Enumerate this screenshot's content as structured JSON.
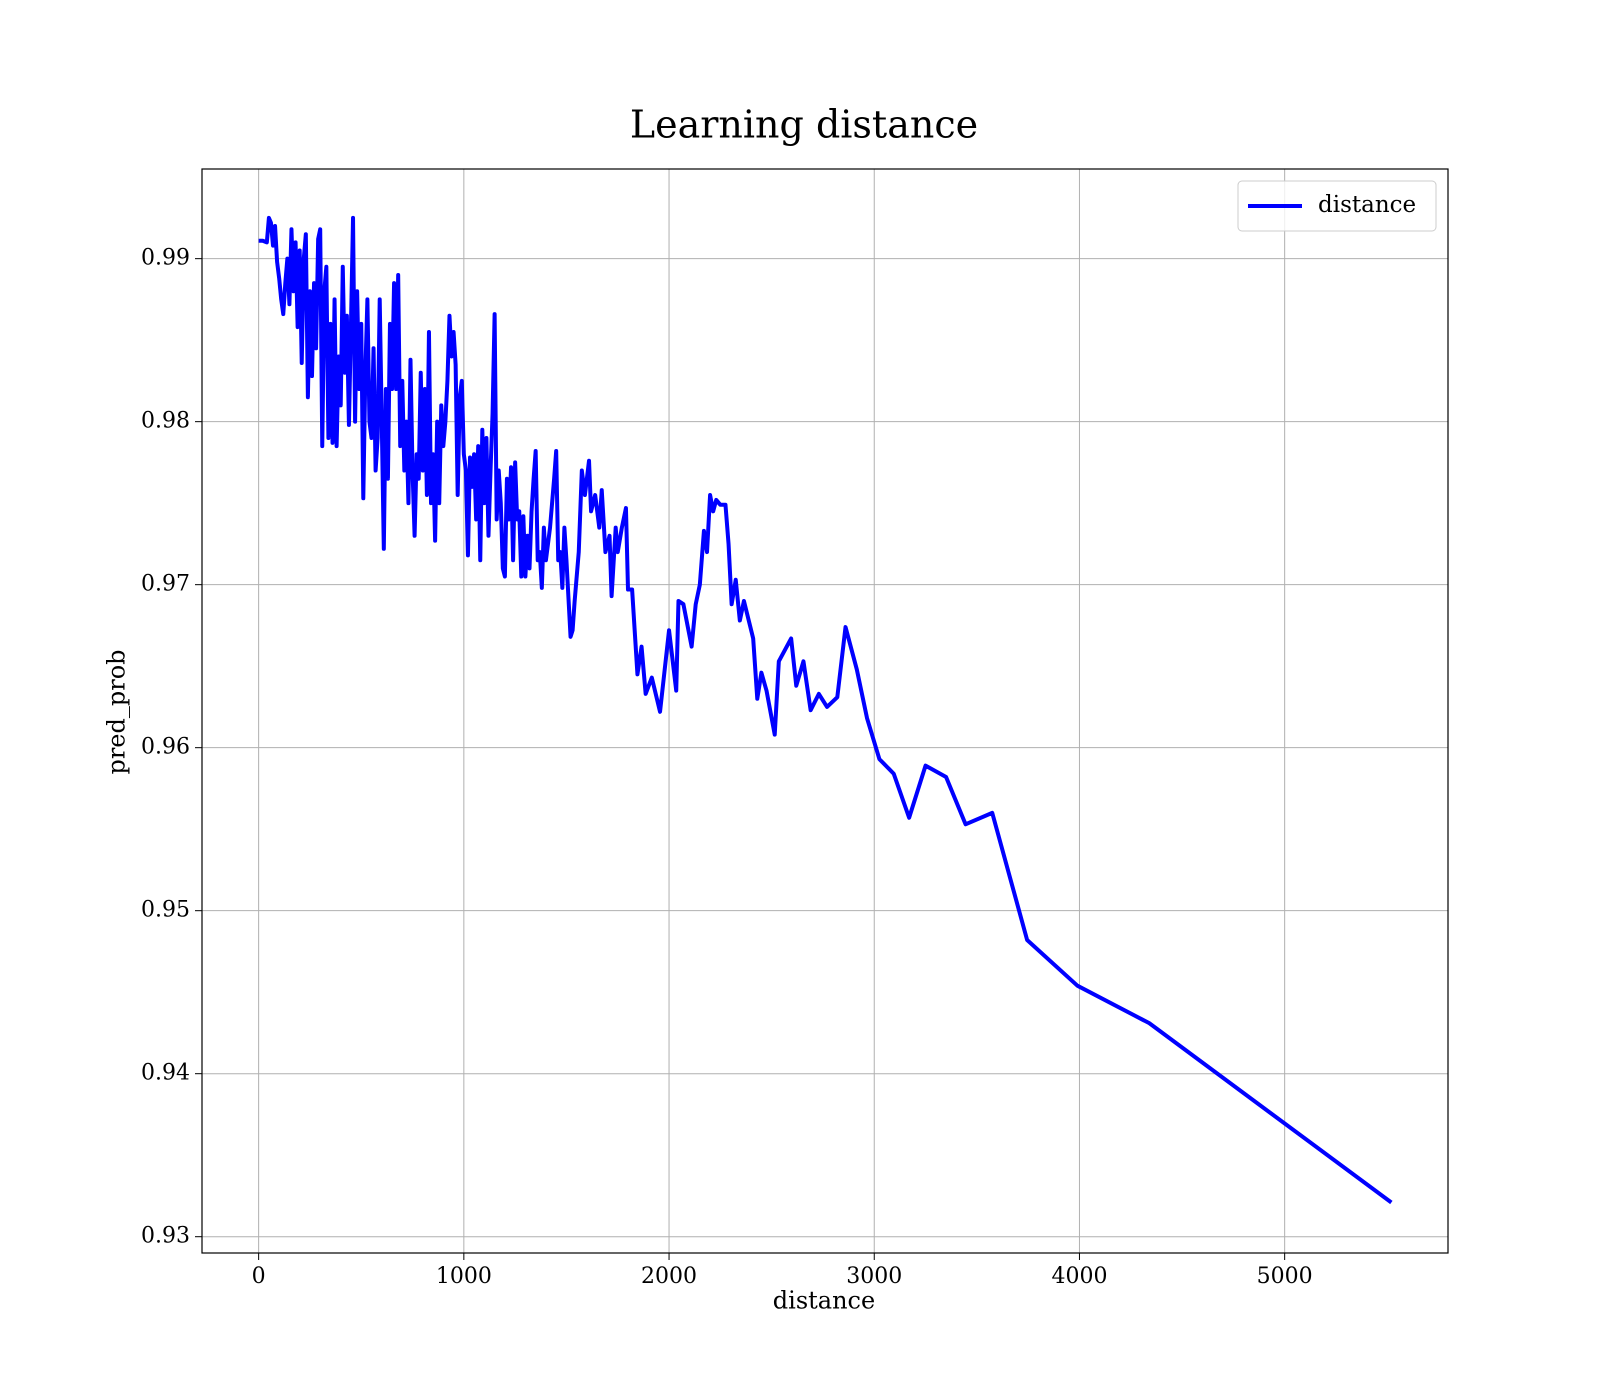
{
  "chart_data": {
    "type": "line",
    "title": "Learning distance",
    "x_label": "distance",
    "y_label": "pred_prob",
    "grid": true,
    "legend": "upper right",
    "xlim": [
      -276,
      5796
    ],
    "xticks": [
      0,
      1000,
      2000,
      3000,
      4000,
      5000
    ],
    "ylim": [
      0.929,
      0.9955
    ],
    "yticks": [
      0.93,
      0.94,
      0.95,
      0.96,
      0.97,
      0.98,
      0.99
    ],
    "x": [
      0,
      20,
      40,
      50,
      60,
      70,
      80,
      90,
      100,
      110,
      120,
      130,
      140,
      150,
      160,
      170,
      180,
      190,
      200,
      210,
      220,
      230,
      240,
      250,
      260,
      270,
      280,
      290,
      300,
      310,
      320,
      330,
      340,
      350,
      360,
      370,
      380,
      390,
      400,
      410,
      420,
      430,
      440,
      450,
      460,
      470,
      480,
      490,
      500,
      510,
      520,
      530,
      540,
      550,
      560,
      570,
      580,
      590,
      600,
      610,
      620,
      630,
      640,
      650,
      660,
      670,
      680,
      690,
      700,
      710,
      720,
      730,
      740,
      750,
      760,
      770,
      780,
      790,
      800,
      810,
      820,
      830,
      840,
      850,
      860,
      870,
      880,
      890,
      900,
      910,
      920,
      930,
      940,
      950,
      960,
      970,
      980,
      990,
      1000,
      1010,
      1020,
      1030,
      1040,
      1050,
      1060,
      1070,
      1080,
      1090,
      1100,
      1110,
      1120,
      1130,
      1140,
      1150,
      1160,
      1170,
      1180,
      1190,
      1200,
      1210,
      1220,
      1230,
      1240,
      1250,
      1260,
      1270,
      1280,
      1290,
      1300,
      1310,
      1320,
      1330,
      1340,
      1350,
      1360,
      1370,
      1380,
      1390,
      1400,
      1420,
      1440,
      1450,
      1460,
      1470,
      1480,
      1490,
      1500,
      1520,
      1530,
      1540,
      1560,
      1575,
      1590,
      1610,
      1620,
      1640,
      1660,
      1672,
      1690,
      1710,
      1720,
      1740,
      1750,
      1770,
      1790,
      1800,
      1820,
      1846,
      1866,
      1886,
      1916,
      1956,
      2000,
      2035,
      2046,
      2070,
      2110,
      2130,
      2150,
      2170,
      2185,
      2200,
      2215,
      2230,
      2250,
      2275,
      2290,
      2305,
      2325,
      2345,
      2365,
      2410,
      2430,
      2450,
      2475,
      2515,
      2535,
      2595,
      2620,
      2655,
      2690,
      2730,
      2770,
      2820,
      2860,
      2915,
      2965,
      3025,
      3095,
      3170,
      3250,
      3350,
      3445,
      3575,
      3745,
      3990,
      4340,
      5520
    ],
    "series": [
      {
        "name": "distance",
        "color": "#0000ff",
        "values": [
          0.9911,
          0.9911,
          0.991,
          0.9925,
          0.9922,
          0.9908,
          0.992,
          0.9898,
          0.9888,
          0.9875,
          0.9866,
          0.9885,
          0.99,
          0.9872,
          0.9918,
          0.988,
          0.991,
          0.9858,
          0.9905,
          0.9836,
          0.99,
          0.9915,
          0.9815,
          0.988,
          0.9828,
          0.9885,
          0.9845,
          0.9912,
          0.9918,
          0.9785,
          0.988,
          0.9895,
          0.979,
          0.986,
          0.9787,
          0.9875,
          0.9785,
          0.984,
          0.981,
          0.9895,
          0.983,
          0.9865,
          0.9798,
          0.986,
          0.9925,
          0.98,
          0.988,
          0.982,
          0.986,
          0.9753,
          0.983,
          0.9875,
          0.98,
          0.979,
          0.9845,
          0.977,
          0.979,
          0.9875,
          0.98,
          0.9722,
          0.982,
          0.9765,
          0.986,
          0.982,
          0.9885,
          0.982,
          0.989,
          0.9785,
          0.9825,
          0.977,
          0.98,
          0.975,
          0.9838,
          0.977,
          0.973,
          0.978,
          0.9765,
          0.983,
          0.977,
          0.982,
          0.9755,
          0.9855,
          0.975,
          0.978,
          0.9727,
          0.98,
          0.975,
          0.981,
          0.9785,
          0.98,
          0.9825,
          0.9865,
          0.984,
          0.9855,
          0.9835,
          0.9755,
          0.9815,
          0.9825,
          0.978,
          0.977,
          0.9718,
          0.9778,
          0.976,
          0.978,
          0.974,
          0.9785,
          0.9715,
          0.9795,
          0.975,
          0.979,
          0.973,
          0.977,
          0.9805,
          0.9866,
          0.974,
          0.977,
          0.975,
          0.971,
          0.9705,
          0.9765,
          0.974,
          0.9772,
          0.9715,
          0.9775,
          0.974,
          0.9745,
          0.9705,
          0.9742,
          0.9705,
          0.973,
          0.971,
          0.9745,
          0.9765,
          0.9782,
          0.9715,
          0.972,
          0.9698,
          0.9735,
          0.9715,
          0.9735,
          0.9765,
          0.9782,
          0.9715,
          0.972,
          0.9698,
          0.9735,
          0.9715,
          0.9668,
          0.9672,
          0.969,
          0.972,
          0.977,
          0.9755,
          0.9776,
          0.9745,
          0.9755,
          0.9735,
          0.9758,
          0.972,
          0.973,
          0.9693,
          0.9735,
          0.972,
          0.9735,
          0.9747,
          0.9697,
          0.9697,
          0.9645,
          0.9662,
          0.9633,
          0.9643,
          0.9622,
          0.9672,
          0.9635,
          0.969,
          0.9688,
          0.9662,
          0.9688,
          0.97,
          0.9733,
          0.972,
          0.9755,
          0.9745,
          0.9752,
          0.9749,
          0.9749,
          0.9725,
          0.9688,
          0.9703,
          0.9678,
          0.969,
          0.9667,
          0.963,
          0.9646,
          0.9635,
          0.9608,
          0.9653,
          0.9667,
          0.9638,
          0.9653,
          0.9623,
          0.9633,
          0.9625,
          0.9631,
          0.9674,
          0.9648,
          0.9618,
          0.9593,
          0.9584,
          0.9557,
          0.9589,
          0.9582,
          0.9553,
          0.956,
          0.9482,
          0.9454,
          0.9431,
          0.9321
        ]
      }
    ]
  }
}
